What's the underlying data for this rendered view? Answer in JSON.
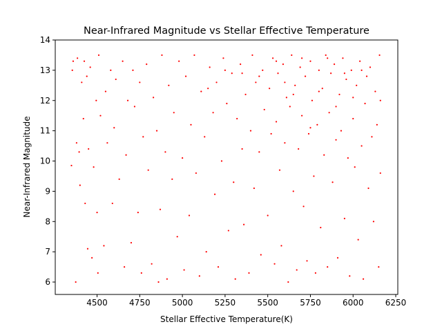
{
  "chart_data": {
    "type": "scatter",
    "title": "Near-Infrared Magnitude vs Stellar Effective Temperature",
    "x_label": "Stellar Effective Temperature(K)",
    "y_label": "Near-Infrared Magnitude",
    "color": "#ff0000",
    "xlim": [
      4255,
      6262
    ],
    "ylim": [
      5.59,
      14
    ],
    "xticks": [
      4500,
      4750,
      5000,
      5250,
      5500,
      5750,
      6000,
      6250
    ],
    "yticks": [
      6,
      7,
      8,
      9,
      10,
      11,
      12,
      13,
      14
    ],
    "x": [
      4350,
      4355,
      4360,
      4375,
      4380,
      4385,
      4395,
      4400,
      4410,
      4420,
      4425,
      4430,
      4440,
      4445,
      4450,
      4460,
      4470,
      4480,
      4495,
      4500,
      4505,
      4510,
      4520,
      4540,
      4550,
      4560,
      4580,
      4590,
      4600,
      4610,
      4630,
      4650,
      4660,
      4670,
      4680,
      4700,
      4710,
      4720,
      4740,
      4750,
      4760,
      4770,
      4790,
      4800,
      4820,
      4830,
      4850,
      4860,
      4870,
      4880,
      4900,
      4910,
      4920,
      4940,
      4950,
      4970,
      4980,
      5000,
      5010,
      5020,
      5040,
      5050,
      5070,
      5080,
      5100,
      5110,
      5130,
      5140,
      5160,
      5180,
      5190,
      5200,
      5210,
      5230,
      5240,
      5260,
      5270,
      5290,
      5300,
      5310,
      5320,
      5340,
      5350,
      5360,
      5370,
      5390,
      5400,
      5410,
      5420,
      5430,
      5450,
      5460,
      5470,
      5480,
      5500,
      5510,
      5520,
      5530,
      5540,
      5550,
      5560,
      5570,
      5580,
      5590,
      5600,
      5610,
      5620,
      5630,
      5640,
      5650,
      5660,
      5670,
      5680,
      5690,
      5700,
      5710,
      5720,
      5730,
      5740,
      5750,
      5760,
      5770,
      5780,
      5790,
      5800,
      5810,
      5820,
      5830,
      5840,
      5850,
      5860,
      5870,
      5880,
      5890,
      5900,
      5910,
      5920,
      5930,
      5940,
      5950,
      5960,
      5970,
      5980,
      5990,
      6000,
      6010,
      6020,
      6030,
      6040,
      6050,
      6060,
      6070,
      6080,
      6090,
      6100,
      6110,
      6120,
      6130,
      6140,
      6150,
      6155,
      6160,
      6160,
      5600,
      5650,
      5700,
      5750,
      5800,
      5850,
      5900,
      5950,
      6000,
      6050,
      5550,
      5450,
      5350,
      5250,
      5150
    ],
    "y": [
      9.85,
      13.0,
      13.3,
      6.0,
      10.6,
      13.4,
      10.3,
      9.2,
      12.6,
      11.4,
      13.3,
      8.6,
      12.8,
      7.1,
      10.4,
      13.1,
      6.8,
      9.8,
      12.0,
      8.3,
      6.3,
      13.5,
      11.5,
      7.2,
      12.3,
      10.6,
      13.0,
      8.6,
      11.1,
      12.7,
      9.4,
      13.3,
      6.5,
      10.2,
      12.0,
      7.3,
      13.0,
      11.8,
      8.3,
      12.6,
      6.3,
      10.8,
      13.2,
      9.7,
      6.6,
      12.1,
      11.0,
      6.0,
      8.4,
      13.5,
      10.3,
      6.1,
      12.5,
      9.4,
      11.6,
      7.5,
      13.3,
      10.1,
      6.4,
      12.8,
      8.2,
      11.2,
      13.5,
      9.6,
      6.2,
      12.3,
      10.8,
      7.0,
      13.1,
      11.6,
      8.9,
      12.6,
      6.5,
      10.0,
      13.4,
      11.9,
      7.7,
      12.9,
      9.3,
      6.1,
      11.4,
      13.2,
      10.4,
      7.9,
      12.2,
      6.3,
      11.0,
      13.5,
      9.1,
      12.6,
      10.3,
      6.9,
      13.0,
      11.7,
      8.2,
      12.4,
      10.9,
      13.4,
      6.6,
      11.3,
      12.9,
      9.7,
      7.2,
      13.2,
      10.6,
      12.1,
      6.0,
      11.8,
      13.5,
      9.0,
      12.5,
      6.4,
      10.4,
      13.1,
      11.5,
      8.5,
      12.8,
      6.7,
      10.9,
      13.3,
      12.0,
      9.5,
      6.3,
      11.2,
      13.0,
      7.8,
      12.4,
      10.2,
      13.5,
      6.5,
      11.6,
      12.9,
      9.3,
      13.2,
      10.7,
      6.8,
      12.2,
      11.0,
      13.4,
      8.1,
      12.7,
      10.1,
      6.2,
      13.0,
      11.4,
      9.8,
      12.5,
      7.4,
      13.3,
      10.5,
      6.1,
      11.9,
      12.8,
      9.1,
      13.1,
      10.8,
      8.0,
      12.3,
      11.2,
      6.5,
      13.5,
      9.6,
      12.0,
      12.6,
      12.2,
      13.4,
      11.1,
      12.3,
      13.4,
      11.8,
      12.9,
      12.1,
      13.0,
      13.3,
      12.8,
      12.9,
      13.0,
      12.4
    ]
  }
}
